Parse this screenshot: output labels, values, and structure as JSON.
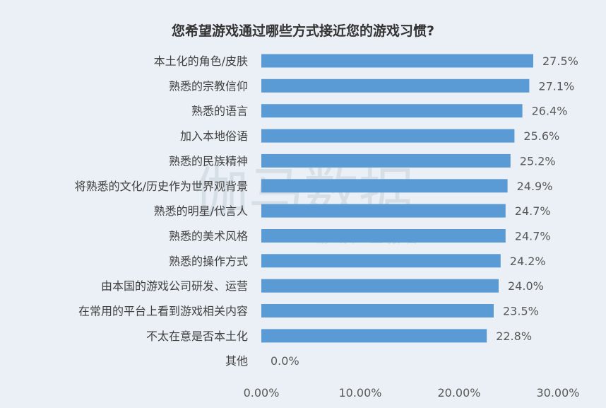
{
  "chart_data": {
    "type": "bar",
    "orientation": "horizontal",
    "title": "您希望游戏通过哪些方式接近您的游戏习惯?",
    "categories": [
      "本土化的角色/皮肤",
      "熟悉的宗教信仰",
      "熟悉的语言",
      "加入本地俗语",
      "熟悉的民族精神",
      "将熟悉的文化/历史作为世界观背景",
      "熟悉的明星/代言人",
      "熟悉的美术风格",
      "熟悉的操作方式",
      "由本国的游戏公司研发、运营",
      "在常用的平台上看到游戏相关内容",
      "不太在意是否本土化",
      "其他"
    ],
    "values": [
      27.5,
      27.1,
      26.4,
      25.6,
      25.2,
      24.9,
      24.7,
      24.7,
      24.2,
      24.0,
      23.5,
      22.8,
      0.0
    ],
    "value_labels": [
      "27.5%",
      "27.1%",
      "26.4%",
      "25.6%",
      "25.2%",
      "24.9%",
      "24.7%",
      "24.7%",
      "24.2%",
      "24.0%",
      "23.5%",
      "22.8%",
      "0.0%"
    ],
    "xlim": [
      0,
      30
    ],
    "x_ticks": [
      0,
      10,
      20,
      30
    ],
    "x_tick_labels": [
      "0.00%",
      "10.00%",
      "20.00%",
      "30.00%"
    ],
    "xlabel": "",
    "ylabel": "",
    "grid": false,
    "legend": "none",
    "bar_color": "#5b9bd5"
  },
  "watermark": {
    "main": "伽马数据",
    "sub": "游 戏 产 业 报 告"
  }
}
